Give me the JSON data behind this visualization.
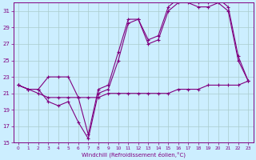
{
  "background_color": "#cceeff",
  "grid_color": "#aacccc",
  "line_color": "#800080",
  "xlabel": "Windchill (Refroidissement éolien,°C)",
  "xlim": [
    -0.5,
    23.5
  ],
  "ylim": [
    15,
    32
  ],
  "yticks": [
    15,
    17,
    19,
    21,
    23,
    25,
    27,
    29,
    31
  ],
  "xticks": [
    0,
    1,
    2,
    3,
    4,
    5,
    6,
    7,
    8,
    9,
    10,
    11,
    12,
    13,
    14,
    15,
    16,
    17,
    18,
    19,
    20,
    21,
    22,
    23
  ],
  "line1_x": [
    0,
    1,
    2,
    3,
    4,
    5,
    6,
    7,
    8,
    9,
    10,
    11,
    12,
    13,
    14,
    15,
    16,
    17,
    18,
    19,
    20,
    21,
    22,
    23
  ],
  "line1_y": [
    22,
    21.5,
    21,
    20.5,
    20.5,
    20.5,
    20.5,
    20.5,
    20.5,
    21,
    21,
    21,
    21,
    21,
    21,
    21,
    21.5,
    21.5,
    21.5,
    22,
    22,
    22,
    22,
    22.5
  ],
  "line2_x": [
    0,
    1,
    2,
    3,
    4,
    5,
    6,
    7,
    8,
    9,
    10,
    11,
    12,
    13,
    14,
    15,
    16,
    17,
    18,
    19,
    20,
    21,
    22,
    23
  ],
  "line2_y": [
    22,
    21.5,
    21.5,
    20,
    19.5,
    20,
    17.5,
    15.5,
    21,
    21.5,
    25,
    29.5,
    30,
    27,
    27.5,
    31,
    32,
    32,
    31.5,
    31.5,
    32,
    31,
    25,
    22.5
  ],
  "line3_x": [
    0,
    1,
    2,
    3,
    4,
    5,
    6,
    7,
    8,
    9,
    10,
    11,
    12,
    13,
    14,
    15,
    16,
    17,
    18,
    19,
    20,
    21,
    22,
    23
  ],
  "line3_y": [
    22,
    21.5,
    21.5,
    23,
    23,
    23,
    20.5,
    16,
    21.5,
    22,
    26,
    30,
    30,
    27.5,
    28,
    31.5,
    32.5,
    32.5,
    32,
    32,
    32.5,
    31.5,
    25.5,
    22.5
  ]
}
